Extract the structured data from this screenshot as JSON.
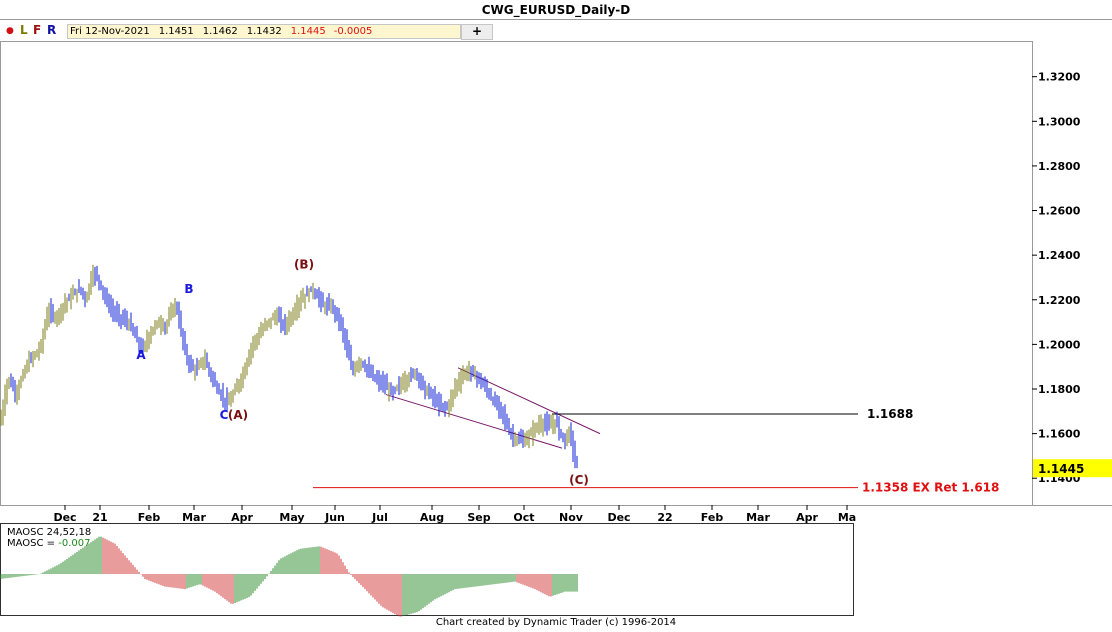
{
  "window": {
    "title": "CWG_EURUSD_Daily-D"
  },
  "toolbar": {
    "buttons": [
      "●",
      "L",
      "F",
      "R"
    ],
    "plus_label": "+"
  },
  "quote": {
    "date": "Fri 12-Nov-2021",
    "open": "1.1451",
    "high": "1.1462",
    "low": "1.1432",
    "close": "1.1445",
    "change": "-0.0005"
  },
  "footer": {
    "text": "Chart created by Dynamic Trader  (c) 1996-2014"
  },
  "colors": {
    "bar_up": "#7d7d1a",
    "bar_down": "#0e1fd6",
    "wave_blue": "#1a1adc",
    "wave_maroon": "#7a1010",
    "target_red": "#e01010",
    "osc_green": "#2c8c2c",
    "osc_red": "#d23a3a",
    "price_tag": "#ffff00"
  },
  "chart_data": {
    "type": "ohlc",
    "instrument": "CWG_EURUSD",
    "timeframe": "Daily",
    "price_axis": {
      "ticks": [
        "1.3200",
        "1.3000",
        "1.2800",
        "1.2600",
        "1.2400",
        "1.2200",
        "1.2000",
        "1.1800",
        "1.1600",
        "1.1400"
      ],
      "range": [
        1.128,
        1.336
      ]
    },
    "time_axis": {
      "labels": [
        "Dec",
        "21",
        "Feb",
        "Mar",
        "Apr",
        "May",
        "Jun",
        "Jul",
        "Aug",
        "Sep",
        "Oct",
        "Nov",
        "Dec",
        "22",
        "Feb",
        "Mar",
        "Apr",
        "Ma"
      ]
    },
    "price_path": [
      [
        0,
        1.165
      ],
      [
        8,
        1.185
      ],
      [
        16,
        1.178
      ],
      [
        28,
        1.192
      ],
      [
        40,
        1.198
      ],
      [
        48,
        1.215
      ],
      [
        56,
        1.212
      ],
      [
        64,
        1.218
      ],
      [
        72,
        1.222
      ],
      [
        80,
        1.225
      ],
      [
        86,
        1.22
      ],
      [
        92,
        1.232
      ],
      [
        98,
        1.23
      ],
      [
        104,
        1.222
      ],
      [
        112,
        1.215
      ],
      [
        120,
        1.212
      ],
      [
        128,
        1.21
      ],
      [
        136,
        1.203
      ],
      [
        142,
        1.197
      ],
      [
        150,
        1.205
      ],
      [
        158,
        1.21
      ],
      [
        166,
        1.208
      ],
      [
        172,
        1.216
      ],
      [
        176,
        1.218
      ],
      [
        182,
        1.203
      ],
      [
        188,
        1.192
      ],
      [
        196,
        1.188
      ],
      [
        204,
        1.194
      ],
      [
        212,
        1.185
      ],
      [
        220,
        1.178
      ],
      [
        228,
        1.173
      ],
      [
        236,
        1.18
      ],
      [
        244,
        1.188
      ],
      [
        252,
        1.2
      ],
      [
        260,
        1.205
      ],
      [
        268,
        1.21
      ],
      [
        276,
        1.213
      ],
      [
        284,
        1.208
      ],
      [
        292,
        1.213
      ],
      [
        300,
        1.22
      ],
      [
        306,
        1.222
      ],
      [
        312,
        1.225
      ],
      [
        318,
        1.221
      ],
      [
        324,
        1.217
      ],
      [
        332,
        1.217
      ],
      [
        340,
        1.21
      ],
      [
        346,
        1.2
      ],
      [
        352,
        1.188
      ],
      [
        360,
        1.193
      ],
      [
        368,
        1.188
      ],
      [
        376,
        1.184
      ],
      [
        384,
        1.182
      ],
      [
        392,
        1.178
      ],
      [
        400,
        1.182
      ],
      [
        408,
        1.185
      ],
      [
        416,
        1.188
      ],
      [
        424,
        1.18
      ],
      [
        432,
        1.177
      ],
      [
        440,
        1.172
      ],
      [
        448,
        1.172
      ],
      [
        456,
        1.182
      ],
      [
        464,
        1.187
      ],
      [
        470,
        1.188
      ],
      [
        478,
        1.185
      ],
      [
        486,
        1.18
      ],
      [
        494,
        1.174
      ],
      [
        502,
        1.17
      ],
      [
        510,
        1.16
      ],
      [
        518,
        1.157
      ],
      [
        526,
        1.157
      ],
      [
        534,
        1.162
      ],
      [
        542,
        1.165
      ],
      [
        550,
        1.163
      ],
      [
        556,
        1.166
      ],
      [
        560,
        1.16
      ],
      [
        566,
        1.157
      ],
      [
        570,
        1.162
      ],
      [
        574,
        1.149
      ],
      [
        578,
        1.1445
      ]
    ],
    "wave_labels": [
      {
        "text": "A",
        "t": 141,
        "price": 1.1935,
        "color": "blue"
      },
      {
        "text": "B",
        "t": 189,
        "price": 1.223,
        "color": "blue"
      },
      {
        "text": "C",
        "t": 224,
        "price": 1.1665,
        "color": "blue"
      },
      {
        "text": "(A)",
        "t": 238,
        "price": 1.1665,
        "color": "maroon"
      },
      {
        "text": "(B)",
        "t": 304,
        "price": 1.234,
        "color": "maroon"
      },
      {
        "text": "(C)",
        "t": 579,
        "price": 1.1375,
        "color": "maroon"
      }
    ],
    "channel": {
      "upper": [
        [
          458,
          1.1895
        ],
        [
          600,
          1.16
        ]
      ],
      "lower": [
        [
          386,
          1.1775
        ],
        [
          562,
          1.1535
        ]
      ]
    },
    "levels": [
      {
        "value": 1.1688,
        "label": "1.1688",
        "start_t": 552,
        "color": "black"
      },
      {
        "value": 1.1358,
        "label": "1.1358 EX Ret 1.618",
        "start_t": 313,
        "color": "red"
      }
    ],
    "last_price": "1.1445",
    "oscillator": {
      "name": "MAOSC 24,52,18",
      "value_label": "MAOSC = -0.007",
      "path": [
        [
          0,
          -0.002
        ],
        [
          40,
          0.0
        ],
        [
          60,
          0.004
        ],
        [
          85,
          0.011
        ],
        [
          100,
          0.015
        ],
        [
          115,
          0.012
        ],
        [
          130,
          0.005
        ],
        [
          145,
          -0.002
        ],
        [
          165,
          -0.005
        ],
        [
          185,
          -0.006
        ],
        [
          200,
          -0.004
        ],
        [
          215,
          -0.007
        ],
        [
          232,
          -0.012
        ],
        [
          250,
          -0.009
        ],
        [
          265,
          -0.002
        ],
        [
          280,
          0.006
        ],
        [
          300,
          0.01
        ],
        [
          320,
          0.011
        ],
        [
          338,
          0.008
        ],
        [
          350,
          0.0
        ],
        [
          365,
          -0.006
        ],
        [
          382,
          -0.013
        ],
        [
          400,
          -0.017
        ],
        [
          418,
          -0.015
        ],
        [
          435,
          -0.01
        ],
        [
          455,
          -0.006
        ],
        [
          475,
          -0.005
        ],
        [
          495,
          -0.004
        ],
        [
          515,
          -0.003
        ],
        [
          535,
          -0.006
        ],
        [
          550,
          -0.009
        ],
        [
          565,
          -0.007
        ],
        [
          578,
          -0.007
        ]
      ],
      "range": [
        -0.019,
        0.019
      ]
    }
  }
}
